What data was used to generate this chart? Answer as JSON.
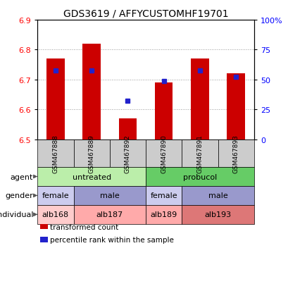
{
  "title": "GDS3619 / AFFYCUSTOMHF19701",
  "samples": [
    "GSM467888",
    "GSM467889",
    "GSM467892",
    "GSM467890",
    "GSM467891",
    "GSM467893"
  ],
  "bar_bottoms": [
    6.5,
    6.5,
    6.5,
    6.5,
    6.5,
    6.5
  ],
  "bar_tops": [
    6.77,
    6.82,
    6.57,
    6.69,
    6.77,
    6.72
  ],
  "blue_y": [
    6.73,
    6.73,
    6.63,
    6.695,
    6.73,
    6.71
  ],
  "ylim": [
    6.5,
    6.9
  ],
  "yticks_left": [
    6.5,
    6.6,
    6.7,
    6.8,
    6.9
  ],
  "yticks_right_vals": [
    6.5,
    6.6,
    6.7,
    6.8,
    6.9
  ],
  "yticks_right_labels": [
    "0",
    "25",
    "50",
    "75",
    "100%"
  ],
  "bar_color": "#cc0000",
  "blue_color": "#2222cc",
  "agent_groups": [
    {
      "text": "untreated",
      "start": 0,
      "end": 3,
      "color": "#bbeeaa"
    },
    {
      "text": "probucol",
      "start": 3,
      "end": 6,
      "color": "#66cc66"
    }
  ],
  "gender_groups": [
    {
      "text": "female",
      "start": 0,
      "end": 1,
      "color": "#ccccee"
    },
    {
      "text": "male",
      "start": 1,
      "end": 3,
      "color": "#9999cc"
    },
    {
      "text": "female",
      "start": 3,
      "end": 4,
      "color": "#ccccee"
    },
    {
      "text": "male",
      "start": 4,
      "end": 6,
      "color": "#9999cc"
    }
  ],
  "individual_groups": [
    {
      "text": "alb168",
      "start": 0,
      "end": 1,
      "color": "#ffcccc"
    },
    {
      "text": "alb187",
      "start": 1,
      "end": 3,
      "color": "#ffaaaa"
    },
    {
      "text": "alb189",
      "start": 3,
      "end": 4,
      "color": "#ffaaaa"
    },
    {
      "text": "alb193",
      "start": 4,
      "end": 6,
      "color": "#dd7777"
    }
  ],
  "row_labels": [
    "agent",
    "gender",
    "individual"
  ],
  "legend_items": [
    {
      "label": "transformed count",
      "color": "#cc0000"
    },
    {
      "label": "percentile rank within the sample",
      "color": "#2222cc"
    }
  ],
  "title_fontsize": 10,
  "axis_fontsize": 8,
  "label_fontsize": 8
}
